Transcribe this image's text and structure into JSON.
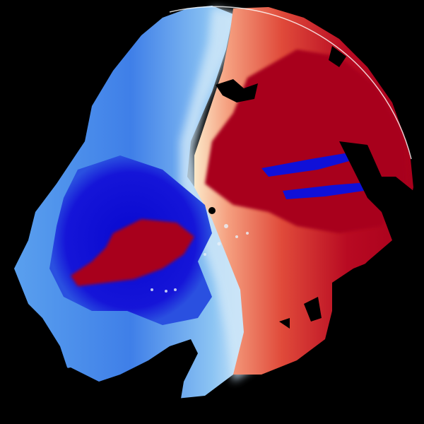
{
  "image": {
    "kind": "doppler-radar-velocity-sweep",
    "colors": {
      "background": "#000000",
      "inbound_strong": "#1010d8",
      "inbound_mid": "#3f7fe8",
      "inbound_light": "#9fd0f5",
      "near_zero": "#fbe8c8",
      "outbound_light": "#f5a080",
      "outbound_mid": "#e04a3a",
      "outbound_strong": "#a8001c"
    }
  }
}
